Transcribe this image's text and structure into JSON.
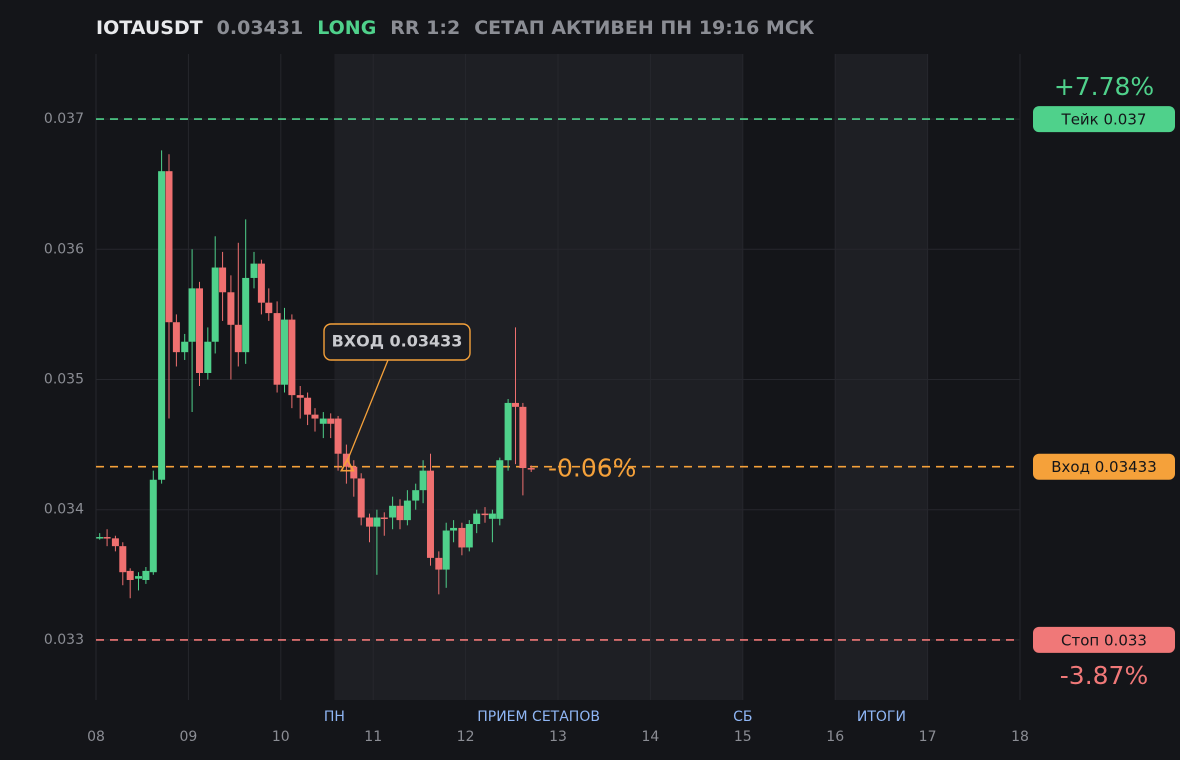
{
  "header": {
    "symbol": "IOTAUSDT",
    "price": 0.03431,
    "side": "LONG",
    "rr": "RR 1:2",
    "status": "СЕТАП АКТИВЕН ПН 19:16 МСК"
  },
  "chart_data": {
    "type": "candlestick",
    "x": [
      8.04,
      8.12,
      8.21,
      8.29,
      8.37,
      8.46,
      8.54,
      8.62,
      8.71,
      8.79,
      8.87,
      8.96,
      9.04,
      9.12,
      9.21,
      9.29,
      9.37,
      9.46,
      9.54,
      9.62,
      9.71,
      9.79,
      9.87,
      9.96,
      10.04,
      10.12,
      10.21,
      10.29,
      10.37,
      10.46,
      10.54,
      10.62,
      10.71,
      10.79,
      10.87,
      10.96,
      11.04,
      11.12,
      11.21,
      11.29,
      11.37,
      11.46,
      11.54,
      11.62,
      11.71,
      11.79,
      11.87,
      11.96,
      12.04,
      12.12,
      12.21,
      12.29,
      12.37,
      12.46,
      12.54,
      12.62,
      12.71
    ],
    "open": [
      0.03379,
      0.03379,
      0.03378,
      0.03372,
      0.03353,
      0.03347,
      0.03346,
      0.03352,
      0.03423,
      0.0366,
      0.03544,
      0.03521,
      0.03529,
      0.0357,
      0.03505,
      0.03529,
      0.03586,
      0.03567,
      0.03542,
      0.03521,
      0.03578,
      0.03589,
      0.03559,
      0.03551,
      0.03496,
      0.03546,
      0.03488,
      0.03486,
      0.03473,
      0.03466,
      0.0347,
      0.0347,
      0.03443,
      0.03433,
      0.03424,
      0.03394,
      0.03387,
      0.03394,
      0.03394,
      0.03403,
      0.03392,
      0.03407,
      0.03415,
      0.0343,
      0.03363,
      0.03354,
      0.03384,
      0.03386,
      0.03371,
      0.03389,
      0.03397,
      0.03393,
      0.03393,
      0.03438,
      0.03482,
      0.03479,
      0.03432
    ],
    "high": [
      0.03382,
      0.03385,
      0.0338,
      0.03375,
      0.03355,
      0.03352,
      0.03356,
      0.0343,
      0.03676,
      0.03673,
      0.0355,
      0.03535,
      0.036,
      0.03575,
      0.0354,
      0.0361,
      0.03598,
      0.0358,
      0.03605,
      0.03623,
      0.03598,
      0.03592,
      0.0357,
      0.0356,
      0.03555,
      0.0355,
      0.03495,
      0.0349,
      0.03478,
      0.03475,
      0.03474,
      0.03472,
      0.0345,
      0.03438,
      0.03428,
      0.03397,
      0.034,
      0.03398,
      0.0341,
      0.03408,
      0.03415,
      0.0342,
      0.03438,
      0.03443,
      0.03368,
      0.0339,
      0.03392,
      0.0339,
      0.03392,
      0.034,
      0.03402,
      0.034,
      0.0344,
      0.03485,
      0.0354,
      0.03482,
      0.03434
    ],
    "low": [
      0.03377,
      0.03372,
      0.03368,
      0.03342,
      0.03332,
      0.03338,
      0.03343,
      0.0335,
      0.0342,
      0.0347,
      0.0351,
      0.03515,
      0.03475,
      0.03495,
      0.035,
      0.0352,
      0.03545,
      0.035,
      0.0351,
      0.03512,
      0.0357,
      0.0355,
      0.03545,
      0.0349,
      0.0349,
      0.03478,
      0.0347,
      0.03465,
      0.0346,
      0.03455,
      0.03455,
      0.0343,
      0.0342,
      0.0341,
      0.03388,
      0.03375,
      0.0335,
      0.0338,
      0.03385,
      0.03385,
      0.03388,
      0.034,
      0.03405,
      0.03357,
      0.03335,
      0.0334,
      0.03375,
      0.03365,
      0.03368,
      0.03382,
      0.0339,
      0.03375,
      0.03388,
      0.0343,
      0.03435,
      0.03411,
      0.03429
    ],
    "close": [
      0.03379,
      0.03378,
      0.03372,
      0.03352,
      0.03346,
      0.03349,
      0.03353,
      0.03423,
      0.0366,
      0.03544,
      0.03521,
      0.03529,
      0.0357,
      0.03505,
      0.03529,
      0.03586,
      0.03567,
      0.03542,
      0.03521,
      0.03578,
      0.03589,
      0.03559,
      0.03551,
      0.03496,
      0.03546,
      0.03488,
      0.03486,
      0.03473,
      0.0347,
      0.0347,
      0.03466,
      0.03443,
      0.03433,
      0.03424,
      0.03394,
      0.03387,
      0.03394,
      0.03393,
      0.03403,
      0.03392,
      0.03407,
      0.03415,
      0.0343,
      0.03363,
      0.03354,
      0.03384,
      0.03386,
      0.03371,
      0.03389,
      0.03397,
      0.03396,
      0.03397,
      0.03438,
      0.03482,
      0.03479,
      0.03432,
      0.03431
    ],
    "up_color": "#4fd18b",
    "down_color": "#ef7070",
    "xlim": [
      8,
      18
    ],
    "xticks": [
      {
        "value": 8,
        "label": "08"
      },
      {
        "value": 9,
        "label": "09"
      },
      10,
      11,
      12,
      13,
      14,
      15,
      16,
      17,
      18
    ],
    "ylim": [
      0.0325,
      0.0375
    ],
    "yticks": [
      0.033,
      0.034,
      0.035,
      0.036,
      0.037
    ],
    "grid": true,
    "regions": [
      {
        "start": 10.58,
        "end": 15
      },
      {
        "start": 16,
        "end": 17
      }
    ],
    "session_labels": [
      {
        "text": "ПН",
        "x": 10.58
      },
      {
        "text": "ПРИЕМ СЕТАПОВ",
        "x": 12.79
      },
      {
        "text": "СБ",
        "x": 15
      },
      {
        "text": "ИТОГИ",
        "x": 16.5
      }
    ],
    "levels": [
      {
        "value": 0.037,
        "label": "Тейк 0.037",
        "change_label": "+7.78%",
        "color": "#4fd18b"
      },
      {
        "value": 0.03433,
        "label": "Вход 0.03433",
        "change_label": "-0.06%",
        "color": "#f5a13a"
      },
      {
        "value": 0.033,
        "label": "Стоп 0.033",
        "change_label": "-3.87%",
        "color": "#f07878"
      }
    ],
    "annotation": {
      "text": "ВХОД 0.03433",
      "x": 10.72,
      "y": 0.03433
    }
  }
}
